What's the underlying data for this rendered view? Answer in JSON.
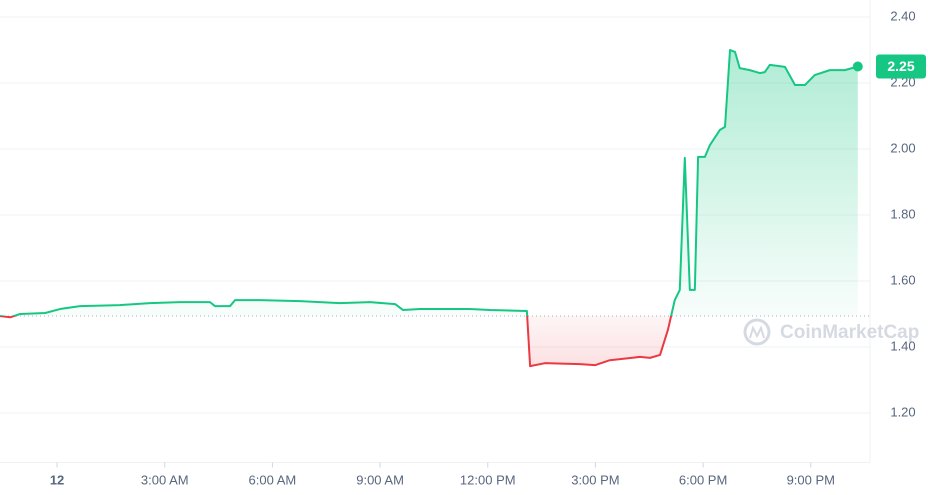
{
  "chart_data": {
    "type": "line",
    "x": [
      -1.59,
      -1.31,
      -1.03,
      -0.33,
      0.08,
      0.64,
      1.75,
      2.59,
      3.43,
      4.26,
      4.4,
      4.82,
      4.96,
      5.65,
      6.77,
      7.88,
      8.72,
      9.42,
      9.64,
      10.11,
      11.5,
      12.06,
      13.09,
      13.18,
      13.59,
      14.57,
      14.99,
      15.4,
      16.24,
      16.52,
      16.8,
      17.02,
      17.21,
      17.35,
      17.49,
      17.63,
      17.77,
      17.86,
      18.05,
      18.19,
      18.47,
      18.61,
      18.75,
      18.89,
      19.02,
      19.3,
      19.58,
      19.72,
      19.86,
      20.28,
      20.56,
      20.84,
      21.11,
      21.53,
      21.95,
      22.31
    ],
    "values": [
      1.494,
      1.49,
      1.5,
      1.503,
      1.515,
      1.524,
      1.527,
      1.533,
      1.536,
      1.536,
      1.524,
      1.524,
      1.542,
      1.542,
      1.539,
      1.533,
      1.536,
      1.53,
      1.512,
      1.515,
      1.515,
      1.512,
      1.509,
      1.342,
      1.351,
      1.348,
      1.345,
      1.36,
      1.37,
      1.367,
      1.376,
      1.452,
      1.542,
      1.573,
      1.973,
      1.573,
      1.573,
      1.976,
      1.976,
      2.012,
      2.058,
      2.067,
      2.3,
      2.294,
      2.245,
      2.239,
      2.23,
      2.233,
      2.255,
      2.249,
      2.194,
      2.194,
      2.224,
      2.239,
      2.239,
      2.25
    ],
    "baseline": 1.494,
    "up_color": "#16c784",
    "down_color": "#ea3943",
    "xlim": [
      -1.59,
      22.65
    ],
    "xticks": [
      {
        "value": 0,
        "label": "12"
      },
      {
        "value": 3,
        "label": "3:00 AM"
      },
      {
        "value": 6,
        "label": "6:00 AM"
      },
      {
        "value": 9,
        "label": "9:00 AM"
      },
      {
        "value": 12,
        "label": "12:00 PM"
      },
      {
        "value": 15,
        "label": "3:00 PM"
      },
      {
        "value": 18,
        "label": "6:00 PM"
      },
      {
        "value": 21,
        "label": "9:00 PM"
      }
    ],
    "ylim": [
      1.05,
      2.45
    ],
    "yticks": [
      {
        "value": 1.2,
        "label": "1.20"
      },
      {
        "value": 1.4,
        "label": "1.40"
      },
      {
        "value": 1.6,
        "label": "1.60"
      },
      {
        "value": 1.8,
        "label": "1.80"
      },
      {
        "value": 2.0,
        "label": "2.00"
      },
      {
        "value": 2.2,
        "label": "2.20"
      },
      {
        "value": 2.4,
        "label": "2.40"
      }
    ],
    "grid": true,
    "watermark": "CoinMarketCap"
  }
}
